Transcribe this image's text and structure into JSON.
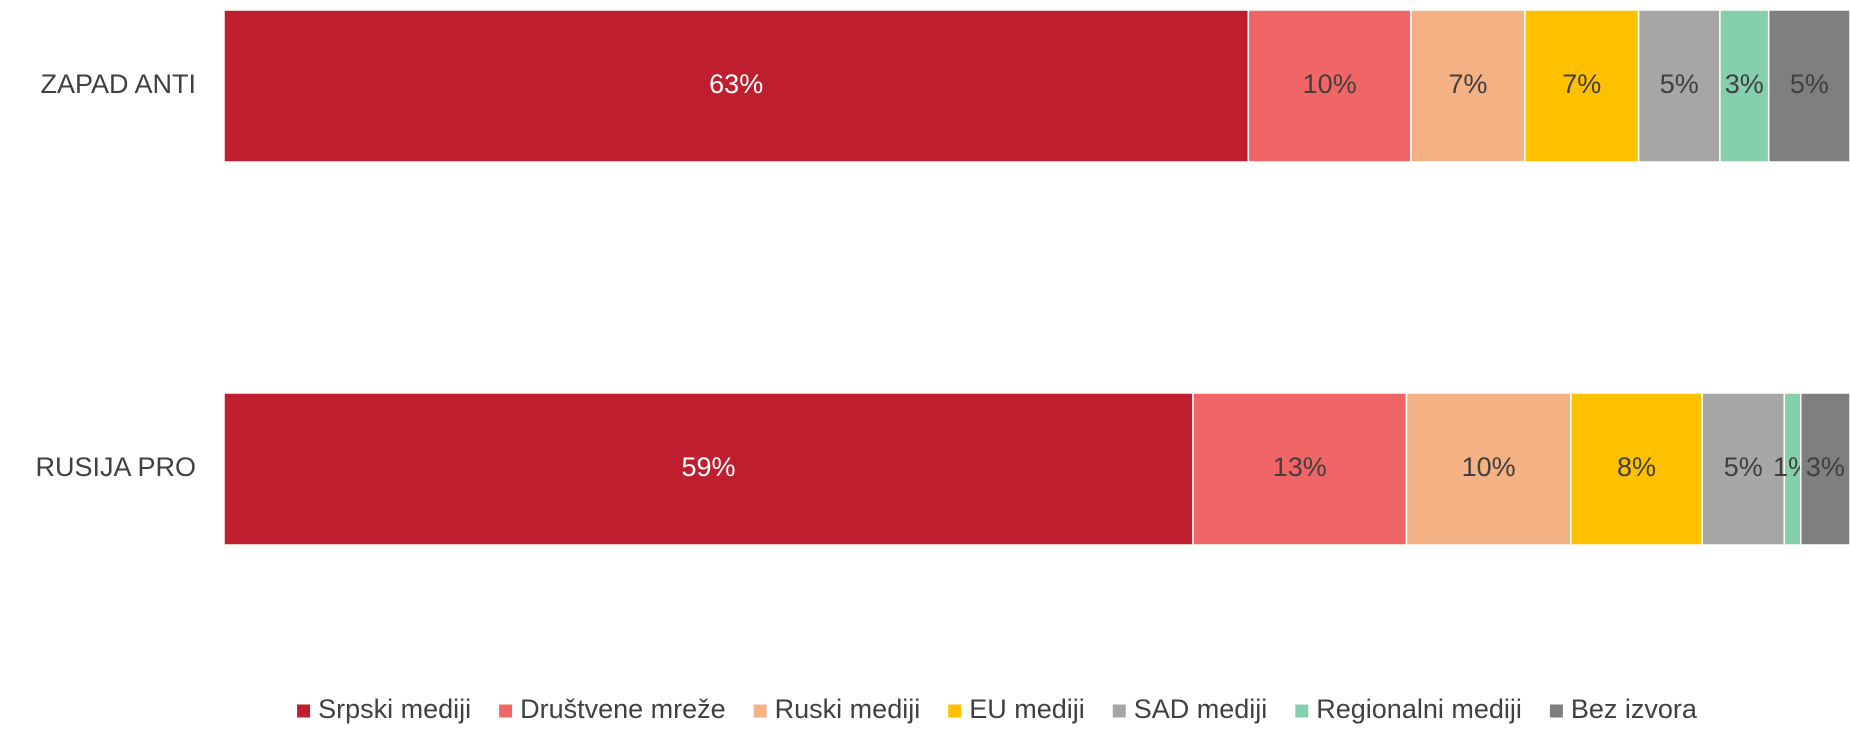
{
  "chart_data": {
    "type": "bar",
    "orientation": "horizontal",
    "stacked": true,
    "categories": [
      "ZAPAD ANTI",
      "RUSIJA PRO"
    ],
    "series": [
      {
        "name": "Srpski mediji",
        "color": "#be1e2d",
        "values": [
          63,
          59
        ],
        "labels": [
          "63%",
          "59%"
        ],
        "label_color": "#ffffff"
      },
      {
        "name": "Društvene mreže",
        "color": "#f06666",
        "values": [
          10,
          13
        ],
        "labels": [
          "10%",
          "13%"
        ],
        "label_color": "#404040"
      },
      {
        "name": "Ruski mediji",
        "color": "#f4b183",
        "values": [
          7,
          10
        ],
        "labels": [
          "7%",
          "10%"
        ],
        "label_color": "#404040"
      },
      {
        "name": "EU mediji",
        "color": "#ffc000",
        "values": [
          7,
          8
        ],
        "labels": [
          "7%",
          "8%"
        ],
        "label_color": "#404040"
      },
      {
        "name": "SAD mediji",
        "color": "#a6a6a6",
        "values": [
          5,
          5
        ],
        "labels": [
          "5%",
          "5%"
        ],
        "label_color": "#404040"
      },
      {
        "name": "Regionalni mediji",
        "color": "#86cfac",
        "values": [
          3,
          1
        ],
        "labels": [
          "3%",
          "1%"
        ],
        "label_color": "#404040"
      },
      {
        "name": "Bez izvora",
        "color": "#7f7f7f",
        "values": [
          5,
          3
        ],
        "labels": [
          "5%",
          "3%"
        ],
        "label_color": "#404040"
      }
    ],
    "legend_position": "bottom",
    "grid": false
  }
}
